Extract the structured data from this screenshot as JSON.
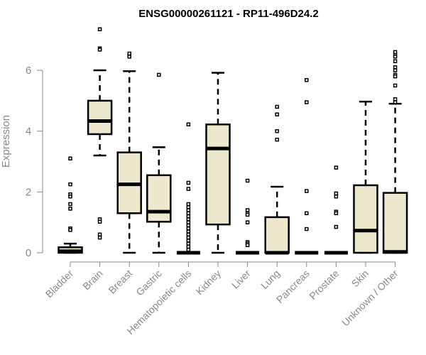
{
  "chart_data": {
    "type": "boxplot",
    "title": "ENSG00000261121 - RP11-496D24.2",
    "xlabel": "",
    "ylabel": "Expression",
    "ylim": [
      0,
      7.4
    ],
    "yticks": [
      0,
      2,
      4,
      6
    ],
    "grid": false,
    "box_color": "#ede8ce",
    "categories": [
      "Bladder",
      "Brain",
      "Breast",
      "Gastric",
      "Hematopoietic cells",
      "Kidney",
      "Liver",
      "Lung",
      "Pancreas",
      "Prostate",
      "Skin",
      "Unknown / Other"
    ],
    "series": [
      {
        "name": "Bladder",
        "whisker_low": 0,
        "q1": 0,
        "median": 0.05,
        "q3": 0.18,
        "whisker_high": 0.3,
        "outliers": [
          3.1,
          2.25,
          1.92,
          1.85,
          1.6,
          1.45,
          0.8,
          0.75
        ]
      },
      {
        "name": "Brain",
        "whisker_low": 3.2,
        "q1": 3.9,
        "median": 4.33,
        "q3": 5.0,
        "whisker_high": 6.0,
        "outliers": [
          7.35,
          6.72,
          6.68,
          1.1,
          1.02,
          0.6,
          0.5
        ]
      },
      {
        "name": "Breast",
        "whisker_low": 0,
        "q1": 1.3,
        "median": 2.25,
        "q3": 3.3,
        "whisker_high": 5.97,
        "outliers": [
          6.55,
          6.45
        ]
      },
      {
        "name": "Gastric",
        "whisker_low": 0,
        "q1": 1.02,
        "median": 1.35,
        "q3": 2.55,
        "whisker_high": 3.47,
        "outliers": [
          5.85
        ]
      },
      {
        "name": "Hematopoietic cells",
        "whisker_low": 0,
        "q1": 0,
        "median": 0,
        "q3": 0,
        "whisker_high": 0,
        "outliers": [
          4.22,
          2.3,
          2.1,
          1.6,
          1.5,
          1.4,
          1.3,
          1.2,
          1.1,
          1.0,
          0.9,
          0.8,
          0.7,
          0.6,
          0.5,
          0.4,
          0.3,
          0.2,
          0.1
        ]
      },
      {
        "name": "Kidney",
        "whisker_low": 0,
        "q1": 0.93,
        "median": 3.43,
        "q3": 4.22,
        "whisker_high": 5.92,
        "outliers": []
      },
      {
        "name": "Liver",
        "whisker_low": 0,
        "q1": 0,
        "median": 0,
        "q3": 0,
        "whisker_high": 0,
        "outliers": [
          2.37,
          1.4,
          1.3,
          1.25,
          1.0,
          0.35,
          0.3,
          0.25
        ]
      },
      {
        "name": "Lung",
        "whisker_low": 0,
        "q1": 0,
        "median": 0,
        "q3": 1.17,
        "whisker_high": 2.17,
        "outliers": [
          4.8,
          4.55,
          4.0,
          3.72
        ]
      },
      {
        "name": "Pancreas",
        "whisker_low": 0,
        "q1": 0,
        "median": 0,
        "q3": 0,
        "whisker_high": 0,
        "outliers": [
          5.68,
          4.95,
          2.03,
          1.3,
          0.78
        ]
      },
      {
        "name": "Prostate",
        "whisker_low": 0,
        "q1": 0,
        "median": 0,
        "q3": 0,
        "whisker_high": 0,
        "outliers": [
          2.8,
          1.95,
          1.85,
          1.35,
          1.3,
          0.85
        ]
      },
      {
        "name": "Skin",
        "whisker_low": 0,
        "q1": 0,
        "median": 0.73,
        "q3": 2.22,
        "whisker_high": 4.97,
        "outliers": []
      },
      {
        "name": "Unknown / Other",
        "whisker_low": 0,
        "q1": 0,
        "median": 0.03,
        "q3": 1.97,
        "whisker_high": 4.9,
        "outliers": [
          6.6,
          6.5,
          6.45,
          6.3,
          6.1,
          6.0,
          5.85,
          5.8,
          5.5,
          5.05,
          4.95
        ]
      }
    ]
  }
}
